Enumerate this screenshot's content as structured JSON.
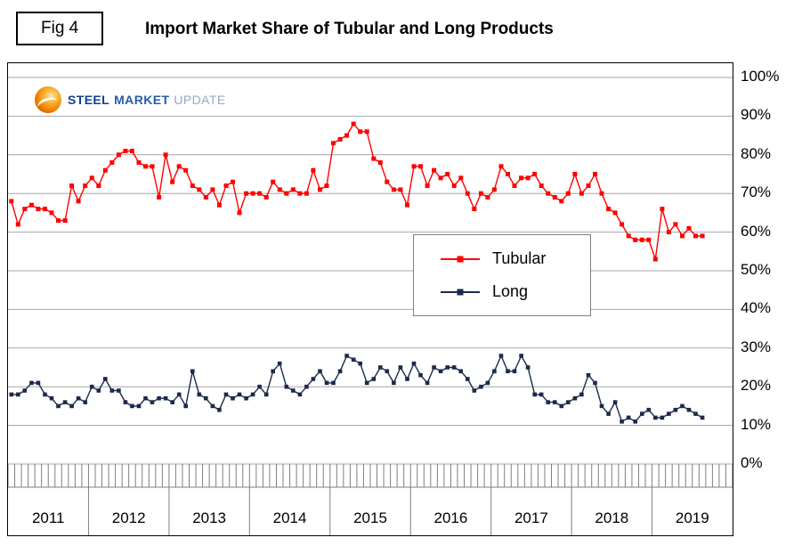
{
  "figure": {
    "tag": "Fig 4",
    "title": "Import Market Share of Tubular and Long Products"
  },
  "logo": {
    "steel": "STEEL",
    "market": "MARKET",
    "update": "UPDATE"
  },
  "legend": {
    "items": [
      {
        "label": "Tubular"
      },
      {
        "label": "Long"
      }
    ]
  },
  "chart_data": {
    "type": "line",
    "title": "Import Market Share of Tubular and Long Products",
    "x_unit": "month",
    "x_start": "2011-01",
    "years": [
      "2011",
      "2012",
      "2013",
      "2014",
      "2015",
      "2016",
      "2017",
      "2018",
      "2019"
    ],
    "months_per_year": 12,
    "yticks": [
      100,
      90,
      80,
      70,
      60,
      50,
      40,
      30,
      20,
      10,
      0
    ],
    "ytick_labels": [
      "100%",
      "90%",
      "80%",
      "70%",
      "60%",
      "50%",
      "40%",
      "30%",
      "20%",
      "10%",
      "0%"
    ],
    "ylim": [
      0,
      100
    ],
    "grid": "horizontal",
    "legend_position": "center",
    "series": [
      {
        "name": "Tubular",
        "color": "#FF0000",
        "marker": "square",
        "values": [
          68,
          62,
          66,
          67,
          66,
          66,
          65,
          63,
          63,
          72,
          68,
          72,
          74,
          72,
          76,
          78,
          80,
          81,
          81,
          78,
          77,
          77,
          69,
          80,
          73,
          77,
          76,
          72,
          71,
          69,
          71,
          67,
          72,
          73,
          65,
          70,
          70,
          70,
          69,
          73,
          71,
          70,
          71,
          70,
          70,
          76,
          71,
          72,
          83,
          84,
          85,
          88,
          86,
          86,
          79,
          78,
          73,
          71,
          71,
          67,
          77,
          77,
          72,
          76,
          74,
          75,
          72,
          74,
          70,
          66,
          70,
          69,
          71,
          77,
          75,
          72,
          74,
          74,
          75,
          72,
          70,
          69,
          68,
          70,
          75,
          70,
          72,
          75,
          70,
          66,
          65,
          62,
          59,
          58,
          58,
          58,
          53,
          66,
          60,
          62,
          59,
          61,
          59,
          59
        ]
      },
      {
        "name": "Long",
        "color": "#1B2A4A",
        "marker": "square",
        "values": [
          18,
          18,
          19,
          21,
          21,
          18,
          17,
          15,
          16,
          15,
          17,
          16,
          20,
          19,
          22,
          19,
          19,
          16,
          15,
          15,
          17,
          16,
          17,
          17,
          16,
          18,
          15,
          24,
          18,
          17,
          15,
          14,
          18,
          17,
          18,
          17,
          18,
          20,
          18,
          24,
          26,
          20,
          19,
          18,
          20,
          22,
          24,
          21,
          21,
          24,
          28,
          27,
          26,
          21,
          22,
          25,
          24,
          21,
          25,
          22,
          26,
          23,
          21,
          25,
          24,
          25,
          25,
          24,
          22,
          19,
          20,
          21,
          24,
          28,
          24,
          24,
          28,
          25,
          18,
          18,
          16,
          16,
          15,
          16,
          17,
          18,
          23,
          21,
          15,
          13,
          16,
          11,
          12,
          11,
          13,
          14,
          12,
          12,
          13,
          14,
          15,
          14,
          13,
          12
        ]
      }
    ]
  }
}
